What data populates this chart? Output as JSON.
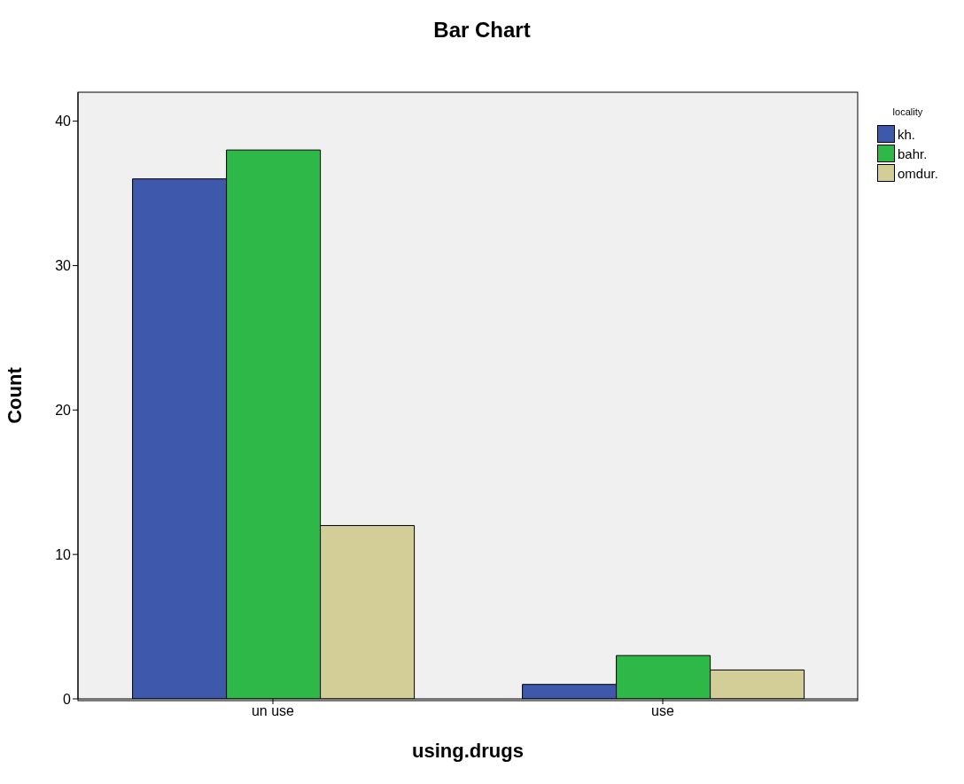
{
  "chart_data": {
    "type": "bar",
    "title": "Bar Chart",
    "xlabel": "using.drugs",
    "ylabel": "Count",
    "legend_title": "locality",
    "categories": [
      "un use",
      "use"
    ],
    "series": [
      {
        "name": "kh.",
        "color": "#3e58ac",
        "values": [
          36,
          1
        ]
      },
      {
        "name": "bahr.",
        "color": "#2eb848",
        "values": [
          38,
          3
        ]
      },
      {
        "name": "omdur.",
        "color": "#d3ce97",
        "values": [
          12,
          2
        ]
      }
    ],
    "ylim": [
      0,
      42
    ],
    "yticks": [
      0,
      10,
      20,
      30,
      40
    ],
    "grid": false,
    "legend": "top right"
  }
}
